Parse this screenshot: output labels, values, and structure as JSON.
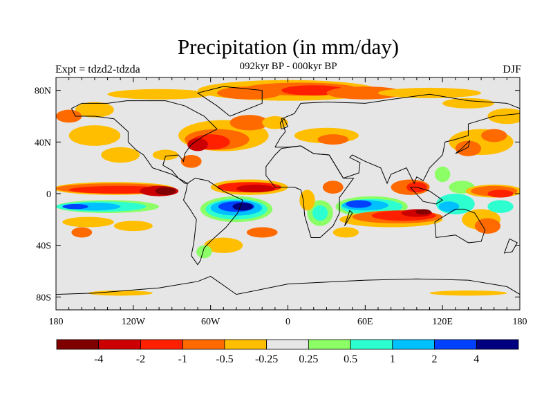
{
  "title": "Precipitation (in mm/day)",
  "subtitle": "092kyr BP - 000kyr BP",
  "left_label": "Expt = tdzd2-tdzda",
  "right_label": "DJF",
  "map": {
    "projection": "cylindrical equidistant",
    "lon_range": [
      -180,
      180
    ],
    "lat_range": [
      -90,
      90
    ],
    "lon_ticks": [
      {
        "v": -180,
        "label": "180"
      },
      {
        "v": -120,
        "label": "120W"
      },
      {
        "v": -60,
        "label": "60W"
      },
      {
        "v": 0,
        "label": "0"
      },
      {
        "v": 60,
        "label": "60E"
      },
      {
        "v": 120,
        "label": "120E"
      },
      {
        "v": 180,
        "label": "180"
      }
    ],
    "lat_ticks": [
      {
        "v": 80,
        "label": "80N"
      },
      {
        "v": 40,
        "label": "40N"
      },
      {
        "v": 0,
        "label": "0"
      },
      {
        "v": -40,
        "label": "40S"
      },
      {
        "v": -80,
        "label": "80S"
      }
    ],
    "background_color": "#e6e6e6"
  },
  "colorbar": {
    "colors": [
      "#800000",
      "#cc0000",
      "#ff2000",
      "#ff6a00",
      "#ffbe00",
      "#e6e6e6",
      "#8cff66",
      "#2effd0",
      "#00c0ff",
      "#0040ff",
      "#000080"
    ],
    "labels": [
      "-4",
      "-2",
      "-1",
      "-0.5",
      "-0.25",
      "0.25",
      "0.5",
      "1",
      "2",
      "4"
    ]
  }
}
